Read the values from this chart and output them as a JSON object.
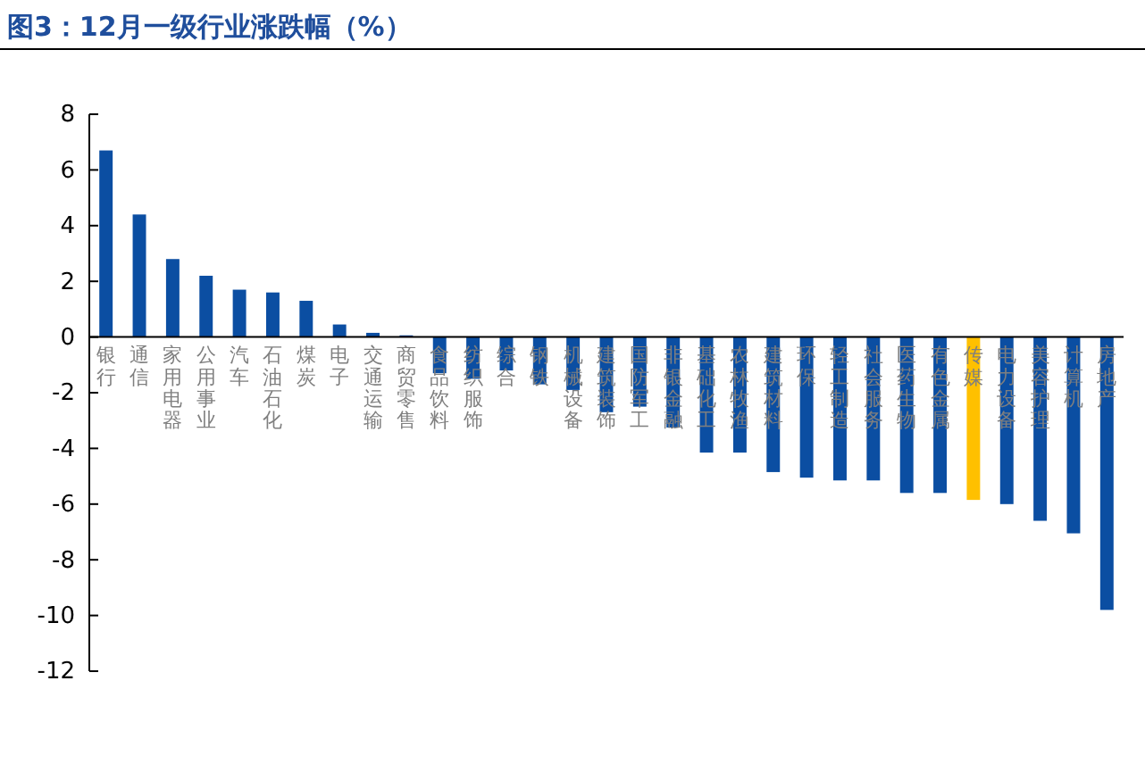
{
  "chart_data": {
    "type": "bar",
    "title": "图3：12月一级行业涨跌幅（%）",
    "categories": [
      "银行",
      "通信",
      "家用电器",
      "公用事业",
      "汽车",
      "石油石化",
      "煤炭",
      "电子",
      "交通运输",
      "商贸零售",
      "食品饮料",
      "纺织服饰",
      "综合",
      "钢铁",
      "机械设备",
      "建筑装饰",
      "国防军工",
      "非银金融",
      "基础化工",
      "农林牧渔",
      "建筑材料",
      "环保",
      "轻工制造",
      "社会服务",
      "医药生物",
      "有色金属",
      "传媒",
      "电力设备",
      "美容护理",
      "计算机",
      "房地产"
    ],
    "values": [
      6.7,
      4.4,
      2.8,
      2.2,
      1.7,
      1.6,
      1.3,
      0.45,
      0.15,
      0.06,
      -1.3,
      -1.5,
      -1.2,
      -1.7,
      -1.9,
      -2.7,
      -2.5,
      -3.25,
      -4.15,
      -4.15,
      -4.85,
      -5.05,
      -5.15,
      -5.15,
      -5.6,
      -5.6,
      -5.85,
      -6.0,
      -6.6,
      -7.05,
      -9.8
    ],
    "colors": [
      "#0b4ea2",
      "#0b4ea2",
      "#0b4ea2",
      "#0b4ea2",
      "#0b4ea2",
      "#0b4ea2",
      "#0b4ea2",
      "#0b4ea2",
      "#0b4ea2",
      "#0b4ea2",
      "#0b4ea2",
      "#0b4ea2",
      "#0b4ea2",
      "#0b4ea2",
      "#0b4ea2",
      "#0b4ea2",
      "#0b4ea2",
      "#0b4ea2",
      "#0b4ea2",
      "#0b4ea2",
      "#0b4ea2",
      "#0b4ea2",
      "#0b4ea2",
      "#0b4ea2",
      "#0b4ea2",
      "#0b4ea2",
      "#ffc000",
      "#0b4ea2",
      "#0b4ea2",
      "#0b4ea2",
      "#0b4ea2"
    ],
    "ylim": [
      -12,
      8
    ],
    "yticks": [
      -12,
      -10,
      -8,
      -6,
      -4,
      -2,
      0,
      2,
      4,
      6,
      8
    ],
    "grid": false
  }
}
